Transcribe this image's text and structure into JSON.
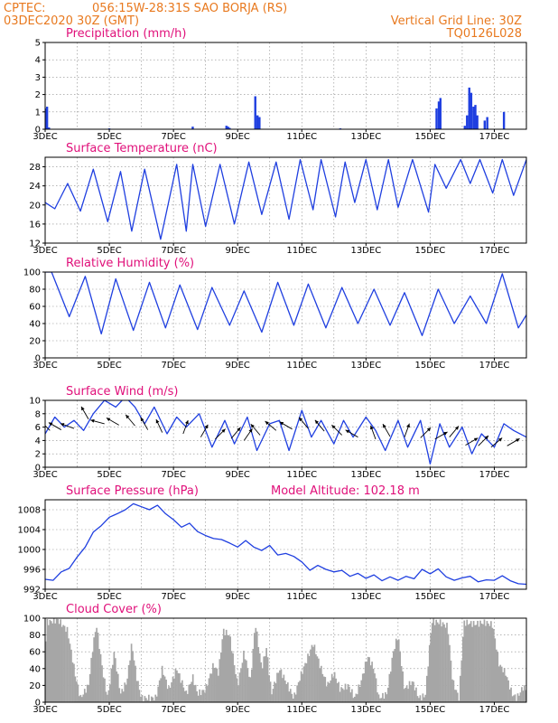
{
  "header": {
    "source": "CPTEC:",
    "location": "056:15W-28:31S  SAO BORJA (RS)",
    "run_time": "03DEC2020 30Z (GMT)",
    "grid_note": "Vertical Grid Line: 30Z",
    "code": "TQ0126L028"
  },
  "colors": {
    "header": "#e8791f",
    "title": "#e0107a",
    "series": "#1f3fe0",
    "cloud": "#a6a6a6",
    "arrow": "#000000"
  },
  "chart_data": [
    {
      "type": "bar",
      "title": "Precipitation (mm/h)",
      "x_tick_labels": [
        "3DEC",
        "5DEC",
        "7DEC",
        "9DEC",
        "11DEC",
        "13DEC",
        "15DEC",
        "17DEC"
      ],
      "xlim_days": [
        3,
        18
      ],
      "ylim": [
        0,
        5
      ],
      "yticks": [
        0,
        1,
        2,
        3,
        4,
        5
      ],
      "bars": [
        [
          3.02,
          1.2
        ],
        [
          3.06,
          1.3
        ],
        [
          3.12,
          0.1
        ],
        [
          5.0,
          0.05
        ],
        [
          7.6,
          0.15
        ],
        [
          8.65,
          0.2
        ],
        [
          8.7,
          0.15
        ],
        [
          8.75,
          0.08
        ],
        [
          9.55,
          1.9
        ],
        [
          9.62,
          0.8
        ],
        [
          9.68,
          0.7
        ],
        [
          12.2,
          0.05
        ],
        [
          15.2,
          1.2
        ],
        [
          15.27,
          1.6
        ],
        [
          15.32,
          1.8
        ],
        [
          16.08,
          0.2
        ],
        [
          16.15,
          0.8
        ],
        [
          16.22,
          2.4
        ],
        [
          16.28,
          2.1
        ],
        [
          16.35,
          1.3
        ],
        [
          16.41,
          1.4
        ],
        [
          16.47,
          0.8
        ],
        [
          16.7,
          0.5
        ],
        [
          16.78,
          0.7
        ],
        [
          17.3,
          1.0
        ]
      ]
    },
    {
      "type": "line",
      "title": "Surface Temperature (nC)",
      "x_tick_labels": [
        "3DEC",
        "5DEC",
        "7DEC",
        "9DEC",
        "11DEC",
        "13DEC",
        "15DEC",
        "17DEC"
      ],
      "xlim_days": [
        3,
        18
      ],
      "ylim": [
        12,
        30
      ],
      "yticks": [
        12,
        16,
        20,
        24,
        28
      ],
      "series": [
        {
          "x": [
            3.0,
            3.3,
            3.7,
            4.1,
            4.5,
            4.95,
            5.35,
            5.7,
            6.1,
            6.6,
            7.1,
            7.4,
            7.6,
            8.0,
            8.45,
            8.9,
            9.35,
            9.75,
            10.2,
            10.6,
            10.95,
            11.35,
            11.6,
            12.05,
            12.35,
            12.65,
            13.0,
            13.35,
            13.7,
            14.0,
            14.45,
            14.95,
            15.15,
            15.5,
            15.95,
            16.25,
            16.55,
            16.95,
            17.25,
            17.6,
            18.0
          ],
          "y": [
            20.5,
            19.2,
            24.5,
            18.7,
            27.5,
            16.5,
            27.0,
            14.5,
            27.5,
            12.8,
            28.5,
            14.5,
            28.5,
            15.5,
            28.5,
            16.0,
            29.0,
            18.0,
            29.0,
            17.0,
            29.5,
            19.0,
            29.5,
            17.5,
            29.0,
            20.5,
            29.5,
            19.0,
            29.5,
            19.5,
            29.5,
            18.5,
            28.5,
            23.5,
            29.5,
            24.5,
            29.5,
            22.5,
            29.5,
            22.0,
            29.5
          ]
        }
      ]
    },
    {
      "type": "line",
      "title": "Relative Humidity (%)",
      "x_tick_labels": [
        "3DEC",
        "5DEC",
        "7DEC",
        "9DEC",
        "11DEC",
        "13DEC",
        "15DEC",
        "17DEC"
      ],
      "xlim_days": [
        3,
        18
      ],
      "ylim": [
        0,
        100
      ],
      "yticks": [
        0,
        20,
        40,
        60,
        80,
        100
      ],
      "series": [
        {
          "x": [
            3.0,
            3.2,
            3.75,
            4.25,
            4.75,
            5.2,
            5.75,
            6.25,
            6.75,
            7.2,
            7.75,
            8.2,
            8.75,
            9.2,
            9.75,
            10.25,
            10.75,
            11.2,
            11.75,
            12.25,
            12.75,
            13.25,
            13.75,
            14.2,
            14.75,
            15.25,
            15.75,
            16.25,
            16.75,
            17.25,
            17.75,
            18.0
          ],
          "y": [
            100,
            100,
            48,
            95,
            28,
            92,
            32,
            88,
            35,
            85,
            33,
            82,
            38,
            78,
            30,
            88,
            38,
            86,
            35,
            82,
            40,
            80,
            38,
            76,
            26,
            80,
            40,
            72,
            40,
            98,
            35,
            50
          ]
        }
      ]
    },
    {
      "type": "line",
      "title": "Surface Wind (m/s)",
      "x_tick_labels": [
        "3DEC",
        "5DEC",
        "7DEC",
        "9DEC",
        "11DEC",
        "13DEC",
        "15DEC",
        "17DEC"
      ],
      "xlim_days": [
        3,
        18
      ],
      "ylim": [
        0,
        10
      ],
      "yticks": [
        0,
        2,
        4,
        6,
        8,
        10
      ],
      "series": [
        {
          "x": [
            3.0,
            3.3,
            3.6,
            3.9,
            4.2,
            4.5,
            4.85,
            5.2,
            5.5,
            5.8,
            6.1,
            6.4,
            6.8,
            7.1,
            7.4,
            7.8,
            8.2,
            8.6,
            8.9,
            9.3,
            9.6,
            10.0,
            10.3,
            10.6,
            11.0,
            11.3,
            11.6,
            12.0,
            12.3,
            12.6,
            13.0,
            13.3,
            13.6,
            14.0,
            14.3,
            14.7,
            15.0,
            15.3,
            15.6,
            16.0,
            16.3,
            16.6,
            17.0,
            17.3,
            17.6,
            18.0
          ],
          "y": [
            5.0,
            7.5,
            6.0,
            7.0,
            5.5,
            8.0,
            10.0,
            9.0,
            10.5,
            9.0,
            6.5,
            9.0,
            5.0,
            7.5,
            6.0,
            8.0,
            3.0,
            7.0,
            3.5,
            7.5,
            2.5,
            6.5,
            7.0,
            2.5,
            8.5,
            4.5,
            7.0,
            3.5,
            7.0,
            4.5,
            7.5,
            5.5,
            2.5,
            7.0,
            3.0,
            7.0,
            0.5,
            6.5,
            3.0,
            6.0,
            2.0,
            5.0,
            3.0,
            6.5,
            5.5,
            4.5
          ]
        }
      ],
      "vectors": [
        [
          3.15,
          5.5,
          315
        ],
        [
          3.5,
          5.6,
          300
        ],
        [
          3.9,
          5.8,
          290
        ],
        [
          4.35,
          7.2,
          330
        ],
        [
          4.85,
          6.5,
          285
        ],
        [
          5.3,
          6.3,
          300
        ],
        [
          5.8,
          6.2,
          320
        ],
        [
          6.2,
          5.6,
          330
        ],
        [
          6.65,
          5.2,
          335
        ],
        [
          7.3,
          5.0,
          20
        ],
        [
          7.85,
          4.5,
          30
        ],
        [
          8.3,
          4.2,
          45
        ],
        [
          8.8,
          4.3,
          40
        ],
        [
          9.2,
          4.0,
          35
        ],
        [
          9.7,
          4.8,
          320
        ],
        [
          10.2,
          5.5,
          310
        ],
        [
          10.7,
          5.7,
          300
        ],
        [
          11.2,
          5.8,
          320
        ],
        [
          11.7,
          5.4,
          320
        ],
        [
          12.25,
          4.8,
          315
        ],
        [
          12.75,
          4.5,
          300
        ],
        [
          13.3,
          4.2,
          340
        ],
        [
          13.75,
          4.6,
          330
        ],
        [
          14.2,
          4.5,
          20
        ],
        [
          14.7,
          4.4,
          45
        ],
        [
          15.15,
          4.2,
          60
        ],
        [
          15.6,
          4.5,
          40
        ],
        [
          16.1,
          3.3,
          60
        ],
        [
          16.5,
          3.2,
          45
        ],
        [
          16.9,
          3.0,
          50
        ],
        [
          17.4,
          3.2,
          60
        ]
      ]
    },
    {
      "type": "line",
      "title": "Surface Pressure (hPa)",
      "annotation": "Model Altitude: 102.18 m",
      "x_tick_labels": [
        "3DEC",
        "5DEC",
        "7DEC",
        "9DEC",
        "11DEC",
        "13DEC",
        "15DEC",
        "17DEC"
      ],
      "xlim_days": [
        3,
        18
      ],
      "ylim": [
        992,
        1010
      ],
      "yticks": [
        992,
        996,
        1000,
        1004,
        1008
      ],
      "series": [
        {
          "x": [
            3.0,
            3.25,
            3.5,
            3.75,
            4.0,
            4.25,
            4.5,
            4.75,
            5.0,
            5.25,
            5.5,
            5.75,
            6.0,
            6.25,
            6.5,
            6.75,
            7.0,
            7.25,
            7.5,
            7.75,
            8.0,
            8.25,
            8.5,
            8.75,
            9.0,
            9.25,
            9.5,
            9.75,
            10.0,
            10.25,
            10.5,
            10.75,
            11.0,
            11.25,
            11.5,
            11.75,
            12.0,
            12.25,
            12.5,
            12.75,
            13.0,
            13.25,
            13.5,
            13.75,
            14.0,
            14.25,
            14.5,
            14.75,
            15.0,
            15.25,
            15.5,
            15.75,
            16.0,
            16.25,
            16.5,
            16.75,
            17.0,
            17.25,
            17.5,
            17.75,
            18.0
          ],
          "y": [
            994.0,
            993.8,
            995.5,
            996.2,
            998.5,
            1000.5,
            1003.5,
            1004.8,
            1006.5,
            1007.2,
            1008.0,
            1009.2,
            1008.6,
            1008.0,
            1008.9,
            1007.2,
            1006.0,
            1004.5,
            1005.3,
            1003.6,
            1002.8,
            1002.2,
            1002.0,
            1001.3,
            1000.5,
            1001.8,
            1000.5,
            999.8,
            1000.8,
            998.9,
            999.2,
            998.6,
            997.5,
            995.8,
            996.8,
            996.0,
            995.5,
            995.8,
            994.6,
            995.2,
            994.2,
            994.9,
            993.7,
            994.5,
            993.8,
            994.6,
            994.1,
            996.0,
            995.1,
            996.1,
            994.5,
            993.8,
            994.3,
            994.6,
            993.5,
            993.9,
            993.8,
            994.7,
            993.7,
            993.1,
            993.0
          ]
        }
      ]
    },
    {
      "type": "bar",
      "title": "Cloud Cover (%)",
      "x_tick_labels": [
        "3DEC",
        "5DEC",
        "7DEC",
        "9DEC",
        "11DEC",
        "13DEC",
        "15DEC",
        "17DEC"
      ],
      "xlim_days": [
        3,
        18
      ],
      "ylim": [
        0,
        100
      ],
      "yticks": [
        0,
        20,
        40,
        60,
        80,
        100
      ],
      "profile": [
        [
          3.0,
          60
        ],
        [
          3.05,
          95
        ],
        [
          3.4,
          98
        ],
        [
          3.7,
          85
        ],
        [
          3.95,
          30
        ],
        [
          4.1,
          5
        ],
        [
          4.35,
          20
        ],
        [
          4.5,
          70
        ],
        [
          4.6,
          92
        ],
        [
          4.8,
          35
        ],
        [
          4.95,
          5
        ],
        [
          5.15,
          60
        ],
        [
          5.35,
          10
        ],
        [
          5.55,
          25
        ],
        [
          5.7,
          70
        ],
        [
          5.85,
          30
        ],
        [
          6.0,
          5
        ],
        [
          6.45,
          5
        ],
        [
          6.65,
          40
        ],
        [
          6.85,
          15
        ],
        [
          7.1,
          40
        ],
        [
          7.4,
          10
        ],
        [
          7.6,
          30
        ],
        [
          7.75,
          10
        ],
        [
          8.0,
          15
        ],
        [
          8.25,
          45
        ],
        [
          8.4,
          35
        ],
        [
          8.55,
          85
        ],
        [
          8.75,
          80
        ],
        [
          9.0,
          20
        ],
        [
          9.2,
          60
        ],
        [
          9.4,
          25
        ],
        [
          9.55,
          95
        ],
        [
          9.75,
          40
        ],
        [
          9.9,
          65
        ],
        [
          10.05,
          10
        ],
        [
          10.3,
          40
        ],
        [
          10.5,
          25
        ],
        [
          10.75,
          5
        ],
        [
          10.95,
          30
        ],
        [
          11.15,
          50
        ],
        [
          11.35,
          70
        ],
        [
          11.6,
          40
        ],
        [
          11.8,
          20
        ],
        [
          12.0,
          35
        ],
        [
          12.2,
          15
        ],
        [
          12.45,
          20
        ],
        [
          12.65,
          5
        ],
        [
          12.85,
          25
        ],
        [
          13.05,
          55
        ],
        [
          13.25,
          40
        ],
        [
          13.4,
          5
        ],
        [
          13.65,
          10
        ],
        [
          13.85,
          60
        ],
        [
          14.0,
          80
        ],
        [
          14.2,
          15
        ],
        [
          14.45,
          25
        ],
        [
          14.65,
          5
        ],
        [
          14.85,
          8
        ],
        [
          15.05,
          96
        ],
        [
          15.3,
          95
        ],
        [
          15.55,
          90
        ],
        [
          15.7,
          25
        ],
        [
          15.9,
          5
        ],
        [
          16.05,
          95
        ],
        [
          16.4,
          93
        ],
        [
          16.7,
          95
        ],
        [
          16.95,
          92
        ],
        [
          17.15,
          45
        ],
        [
          17.35,
          35
        ],
        [
          17.55,
          10
        ],
        [
          17.7,
          5
        ],
        [
          17.9,
          18
        ],
        [
          18.0,
          15
        ]
      ]
    }
  ]
}
